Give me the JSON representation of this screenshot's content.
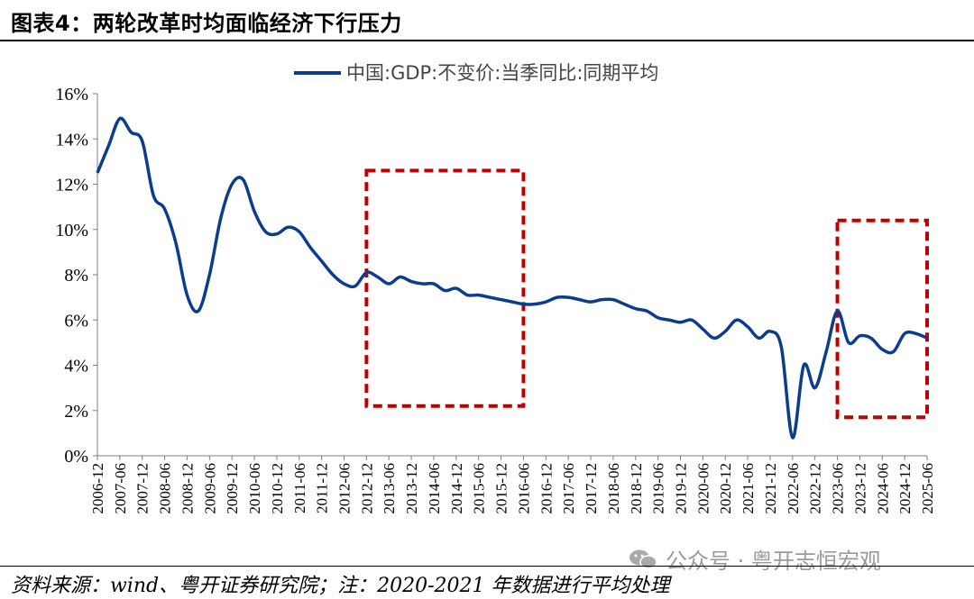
{
  "header": {
    "title": "图表4：两轮改革时均面临经济下行压力"
  },
  "footer": {
    "source": "资料来源：wind、粤开证券研究院；注：2020-2021 年数据进行平均处理",
    "watermark": "公众号 · 粤开志恒宏观",
    "watermark_icon": "wechat-icon"
  },
  "chart_data": {
    "type": "line",
    "title": "",
    "xlabel": "",
    "ylabel": "",
    "ylim": [
      0,
      16
    ],
    "yticks": [
      "0%",
      "2%",
      "4%",
      "6%",
      "8%",
      "10%",
      "12%",
      "14%",
      "16%"
    ],
    "grid": false,
    "legend_position": "top-center",
    "x_tick_labels": [
      "2006-12",
      "2007-06",
      "2007-12",
      "2008-06",
      "2008-12",
      "2009-06",
      "2009-12",
      "2010-06",
      "2010-12",
      "2011-06",
      "2011-12",
      "2012-06",
      "2012-12",
      "2013-06",
      "2013-12",
      "2014-06",
      "2014-12",
      "2015-06",
      "2015-12",
      "2016-06",
      "2016-12",
      "2017-06",
      "2017-12",
      "2018-06",
      "2018-12",
      "2019-06",
      "2019-12",
      "2020-06",
      "2020-12",
      "2021-06",
      "2021-12",
      "2022-06",
      "2022-12",
      "2023-06",
      "2023-12",
      "2024-06",
      "2024-12",
      "2025-06"
    ],
    "x": [
      "2006-12",
      "2007-03",
      "2007-06",
      "2007-09",
      "2007-12",
      "2008-03",
      "2008-06",
      "2008-09",
      "2008-12",
      "2009-03",
      "2009-06",
      "2009-09",
      "2009-12",
      "2010-03",
      "2010-06",
      "2010-09",
      "2010-12",
      "2011-03",
      "2011-06",
      "2011-09",
      "2011-12",
      "2012-03",
      "2012-06",
      "2012-09",
      "2012-12",
      "2013-03",
      "2013-06",
      "2013-09",
      "2013-12",
      "2014-03",
      "2014-06",
      "2014-09",
      "2014-12",
      "2015-03",
      "2015-06",
      "2015-09",
      "2015-12",
      "2016-03",
      "2016-06",
      "2016-09",
      "2016-12",
      "2017-03",
      "2017-06",
      "2017-09",
      "2017-12",
      "2018-03",
      "2018-06",
      "2018-09",
      "2018-12",
      "2019-03",
      "2019-06",
      "2019-09",
      "2019-12",
      "2020-03",
      "2020-06",
      "2020-09",
      "2020-12",
      "2021-03",
      "2021-06",
      "2021-09",
      "2021-12",
      "2022-03",
      "2022-06",
      "2022-09",
      "2022-12",
      "2023-03",
      "2023-06",
      "2023-09",
      "2023-12",
      "2024-03",
      "2024-06",
      "2024-09",
      "2024-12",
      "2025-03",
      "2025-06"
    ],
    "series": [
      {
        "name": "中国:GDP:不变价:当季同比:同期平均",
        "color": "#0b3d8c",
        "values": [
          12.5,
          13.7,
          14.9,
          14.3,
          13.9,
          11.5,
          10.9,
          9.4,
          7.1,
          6.4,
          8.0,
          10.5,
          12.0,
          12.2,
          10.8,
          9.9,
          9.8,
          10.1,
          9.9,
          9.2,
          8.6,
          8.0,
          7.6,
          7.5,
          8.1,
          7.9,
          7.6,
          7.9,
          7.7,
          7.6,
          7.6,
          7.3,
          7.4,
          7.1,
          7.1,
          7.0,
          6.9,
          6.8,
          6.7,
          6.7,
          6.8,
          7.0,
          7.0,
          6.9,
          6.8,
          6.9,
          6.9,
          6.7,
          6.5,
          6.4,
          6.1,
          6.0,
          5.9,
          6.0,
          5.6,
          5.2,
          5.5,
          6.0,
          5.7,
          5.2,
          5.5,
          4.8,
          0.8,
          4.0,
          3.0,
          4.6,
          6.4,
          5.0,
          5.3,
          5.2,
          4.7,
          4.6,
          5.4,
          5.4,
          5.2
        ]
      }
    ],
    "annotations": [
      {
        "type": "dashed-box",
        "color": "#c00000",
        "x_from": "2012-12",
        "x_to": "2016-06",
        "y_from": 2.2,
        "y_to": 12.6
      },
      {
        "type": "dashed-box",
        "color": "#c00000",
        "x_from": "2023-06",
        "x_to": "2025-06",
        "y_from": 1.7,
        "y_to": 10.4
      }
    ]
  }
}
